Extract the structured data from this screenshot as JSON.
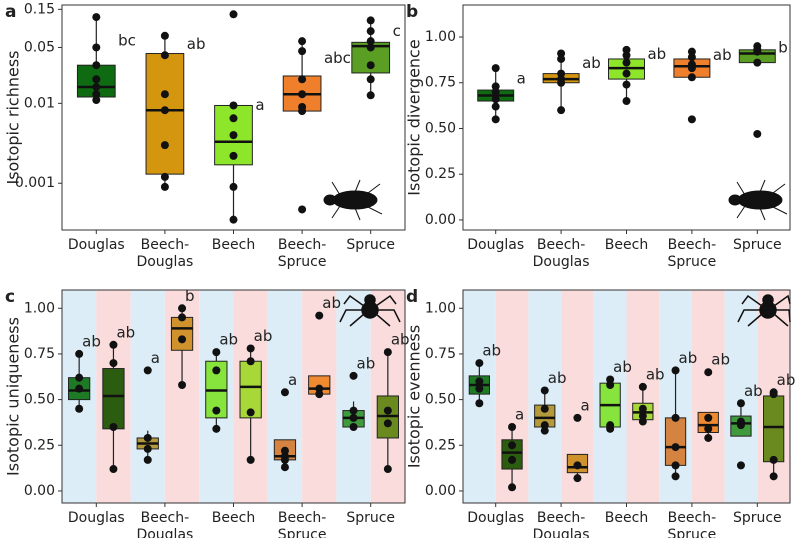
{
  "chart_data": [
    {
      "type": "box",
      "panel_label": "a",
      "ylabel": "Isotopic richness",
      "log": true,
      "categories": [
        "Douglas",
        "Beech-Douglas",
        "Beech",
        "Beech-Spruce",
        "Spruce"
      ],
      "ylim": [
        0.00026,
        0.17
      ],
      "yticks": [
        0.001,
        0.01,
        0.05,
        0.15
      ],
      "series": [
        {
          "colors": [
            "#0e6b12",
            "#d4960f",
            "#8ee62a",
            "#f07f2c",
            "#5a9e24"
          ],
          "boxes": [
            {
              "min": 0.011,
              "q1": 0.012,
              "median": 0.016,
              "q3": 0.03,
              "max": 0.12,
              "points": [
                0.12,
                0.05,
                0.03,
                0.02,
                0.016,
                0.013,
                0.011
              ],
              "label": "bc"
            },
            {
              "min": 0.0009,
              "q1": 0.0013,
              "median": 0.0082,
              "q3": 0.042,
              "max": 0.07,
              "points": [
                0.07,
                0.04,
                0.013,
                0.0082,
                0.003,
                0.0012,
                0.0009
              ],
              "label": "ab"
            },
            {
              "min": 0.00035,
              "q1": 0.0017,
              "median": 0.0033,
              "q3": 0.0094,
              "max": 0.0094,
              "points": [
                0.13,
                0.0094,
                0.0065,
                0.004,
                0.0022,
                0.0009,
                0.00035
              ],
              "label": "a"
            },
            {
              "min": 0.008,
              "q1": 0.008,
              "median": 0.013,
              "q3": 0.022,
              "max": 0.06,
              "points": [
                0.06,
                0.045,
                0.02,
                0.013,
                0.009,
                0.008,
                0.00047
              ],
              "label": "abc"
            },
            {
              "min": 0.0126,
              "q1": 0.024,
              "median": 0.052,
              "q3": 0.058,
              "max": 0.109,
              "points": [
                0.109,
                0.08,
                0.06,
                0.05,
                0.03,
                0.02,
                0.0126
              ],
              "label": "c"
            }
          ]
        }
      ]
    },
    {
      "type": "box",
      "panel_label": "b",
      "ylabel": "Isotopic divergence",
      "log": false,
      "categories": [
        "Douglas",
        "Beech-Douglas",
        "Beech",
        "Beech-Spruce",
        "Spruce"
      ],
      "ylim": [
        -0.055,
        1.175
      ],
      "yticks": [
        {
          "value": 0,
          "label": "0.00"
        },
        {
          "value": 0.25,
          "label": "0.25"
        },
        {
          "value": 0.5,
          "label": "0.50"
        },
        {
          "value": 0.75,
          "label": "0.75"
        },
        {
          "value": 1,
          "label": "1.00"
        }
      ],
      "series": [
        {
          "colors": [
            "#0e6b12",
            "#d4960f",
            "#8ee62a",
            "#f07f2c",
            "#5a9e24"
          ],
          "boxes": [
            {
              "min": 0.55,
              "q1": 0.65,
              "median": 0.68,
              "q3": 0.71,
              "max": 0.83,
              "points": [
                0.83,
                0.73,
                0.7,
                0.66,
                0.62,
                0.55
              ],
              "label": "a"
            },
            {
              "min": 0.6,
              "q1": 0.75,
              "median": 0.77,
              "q3": 0.8,
              "max": 0.91,
              "points": [
                0.91,
                0.88,
                0.8,
                0.77,
                0.75,
                0.6
              ],
              "label": "ab"
            },
            {
              "min": 0.65,
              "q1": 0.77,
              "median": 0.83,
              "q3": 0.88,
              "max": 0.93,
              "points": [
                0.93,
                0.9,
                0.86,
                0.8,
                0.74,
                0.65
              ],
              "label": "ab"
            },
            {
              "min": 0.78,
              "q1": 0.78,
              "median": 0.84,
              "q3": 0.88,
              "max": 0.92,
              "points": [
                0.92,
                0.89,
                0.85,
                0.83,
                0.78,
                0.55
              ],
              "label": "ab"
            },
            {
              "min": 0.86,
              "q1": 0.86,
              "median": 0.91,
              "q3": 0.93,
              "max": 0.95,
              "points": [
                0.95,
                0.93,
                0.92,
                0.86,
                0.47
              ],
              "label": "b"
            }
          ]
        }
      ]
    },
    {
      "type": "box",
      "panel_label": "c",
      "ylabel": "Isotopic uniqueness",
      "log": false,
      "categories": [
        "Douglas",
        "Beech-Douglas",
        "Beech",
        "Beech-Spruce",
        "Spruce"
      ],
      "ylim": [
        -0.066,
        1.1
      ],
      "yticks": [
        {
          "value": 0,
          "label": "0.00"
        },
        {
          "value": 0.25,
          "label": "0.25"
        },
        {
          "value": 0.5,
          "label": "0.50"
        },
        {
          "value": 0.75,
          "label": "0.75"
        },
        {
          "value": 1,
          "label": "1.00"
        }
      ],
      "band_colors": [
        "#dcedf7",
        "#fadcdc"
      ],
      "series": [
        {
          "colors": [
            "#1f7a26",
            "#b49a3a",
            "#86e43c",
            "#d48440",
            "#3f9a3c"
          ],
          "boxes": [
            {
              "min": 0.45,
              "q1": 0.5,
              "median": 0.55,
              "q3": 0.62,
              "max": 0.75,
              "points": [
                0.75,
                0.62,
                0.56,
                0.45
              ],
              "label": "ab"
            },
            {
              "min": 0.17,
              "q1": 0.23,
              "median": 0.26,
              "q3": 0.29,
              "max": 0.33,
              "points": [
                0.66,
                0.29,
                0.23,
                0.17
              ],
              "label": "a"
            },
            {
              "min": 0.34,
              "q1": 0.4,
              "median": 0.55,
              "q3": 0.71,
              "max": 0.76,
              "points": [
                0.76,
                0.66,
                0.44,
                0.34
              ],
              "label": "ab"
            },
            {
              "min": 0.13,
              "q1": 0.17,
              "median": 0.19,
              "q3": 0.28,
              "max": 0.28,
              "points": [
                0.54,
                0.22,
                0.19,
                0.17,
                0.13
              ],
              "label": "a"
            },
            {
              "min": 0.33,
              "q1": 0.35,
              "median": 0.4,
              "q3": 0.44,
              "max": 0.49,
              "points": [
                0.63,
                0.44,
                0.4,
                0.35
              ],
              "label": "ab"
            }
          ]
        },
        {
          "colors": [
            "#2c5c10",
            "#d0922c",
            "#a8d838",
            "#f08a30",
            "#6a8a20"
          ],
          "boxes": [
            {
              "min": 0.12,
              "q1": 0.34,
              "median": 0.52,
              "q3": 0.67,
              "max": 0.8,
              "points": [
                0.8,
                0.7,
                0.35,
                0.12
              ],
              "label": "ab"
            },
            {
              "min": 0.58,
              "q1": 0.77,
              "median": 0.89,
              "q3": 0.95,
              "max": 1.0,
              "points": [
                1.0,
                0.95,
                0.83,
                0.58
              ],
              "label": "b"
            },
            {
              "min": 0.17,
              "q1": 0.4,
              "median": 0.57,
              "q3": 0.71,
              "max": 0.78,
              "points": [
                0.78,
                0.71,
                0.43,
                0.17
              ],
              "label": "ab"
            },
            {
              "min": 0.52,
              "q1": 0.53,
              "median": 0.56,
              "q3": 0.63,
              "max": 0.63,
              "points": [
                0.96,
                0.56,
                0.53
              ],
              "label": "ab"
            },
            {
              "min": 0.12,
              "q1": 0.29,
              "median": 0.41,
              "q3": 0.52,
              "max": 0.76,
              "points": [
                0.76,
                0.44,
                0.37,
                0.12
              ],
              "label": "ab"
            }
          ]
        }
      ]
    },
    {
      "type": "box",
      "panel_label": "d",
      "ylabel": "Isotopic evenness",
      "log": false,
      "categories": [
        "Douglas",
        "Beech-Douglas",
        "Beech",
        "Beech-Spruce",
        "Spruce"
      ],
      "ylim": [
        -0.066,
        1.1
      ],
      "yticks": [
        {
          "value": 0,
          "label": "0.00"
        },
        {
          "value": 0.25,
          "label": "0.25"
        },
        {
          "value": 0.5,
          "label": "0.50"
        },
        {
          "value": 0.75,
          "label": "0.75"
        },
        {
          "value": 1,
          "label": "1.00"
        }
      ],
      "band_colors": [
        "#dcedf7",
        "#fadcdc"
      ],
      "series": [
        {
          "colors": [
            "#1f7a26",
            "#b49a3a",
            "#86e43c",
            "#d48440",
            "#3f9a3c"
          ],
          "boxes": [
            {
              "min": 0.48,
              "q1": 0.53,
              "median": 0.58,
              "q3": 0.63,
              "max": 0.7,
              "points": [
                0.7,
                0.6,
                0.56,
                0.48
              ],
              "label": "ab"
            },
            {
              "min": 0.33,
              "q1": 0.35,
              "median": 0.4,
              "q3": 0.47,
              "max": 0.55,
              "points": [
                0.55,
                0.45,
                0.36,
                0.33
              ],
              "label": "ab"
            },
            {
              "min": 0.34,
              "q1": 0.35,
              "median": 0.47,
              "q3": 0.59,
              "max": 0.61,
              "points": [
                0.61,
                0.58,
                0.36,
                0.34
              ],
              "label": "ab"
            },
            {
              "min": 0.08,
              "q1": 0.14,
              "median": 0.24,
              "q3": 0.4,
              "max": 0.66,
              "points": [
                0.66,
                0.4,
                0.24,
                0.14,
                0.08
              ],
              "label": "ab"
            },
            {
              "min": 0.3,
              "q1": 0.3,
              "median": 0.37,
              "q3": 0.41,
              "max": 0.48,
              "points": [
                0.48,
                0.38,
                0.36,
                0.14
              ],
              "label": "ab"
            }
          ]
        },
        {
          "colors": [
            "#2c5c10",
            "#d0922c",
            "#a8d838",
            "#f08a30",
            "#6a8a20"
          ],
          "boxes": [
            {
              "min": 0.02,
              "q1": 0.12,
              "median": 0.21,
              "q3": 0.28,
              "max": 0.35,
              "points": [
                0.35,
                0.25,
                0.17,
                0.02
              ],
              "label": "a"
            },
            {
              "min": 0.07,
              "q1": 0.1,
              "median": 0.13,
              "q3": 0.2,
              "max": 0.2,
              "points": [
                0.4,
                0.14,
                0.07
              ],
              "label": "a"
            },
            {
              "min": 0.38,
              "q1": 0.39,
              "median": 0.43,
              "q3": 0.48,
              "max": 0.57,
              "points": [
                0.57,
                0.45,
                0.41,
                0.38
              ],
              "label": "ab"
            },
            {
              "min": 0.29,
              "q1": 0.32,
              "median": 0.36,
              "q3": 0.43,
              "max": 0.43,
              "points": [
                0.65,
                0.4,
                0.34,
                0.29
              ],
              "label": "ab"
            },
            {
              "min": 0.08,
              "q1": 0.16,
              "median": 0.35,
              "q3": 0.52,
              "max": 0.54,
              "points": [
                0.54,
                0.53,
                0.17,
                0.08
              ],
              "label": "ab"
            }
          ]
        }
      ]
    }
  ]
}
